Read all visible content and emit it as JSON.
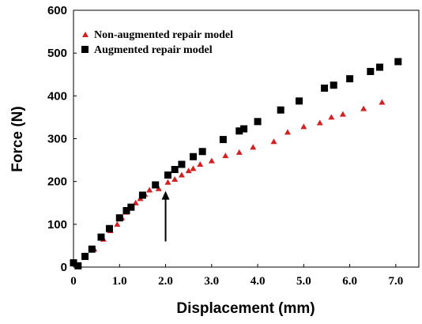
{
  "chart_data": {
    "type": "scatter",
    "xlabel": "Displacement (mm)",
    "ylabel": "Force (N)",
    "xlim": [
      0,
      7.5
    ],
    "ylim": [
      0,
      600
    ],
    "x_ticks": [
      "0",
      "1.0",
      "2.0",
      "3.0",
      "4.0",
      "5.0",
      "6.0",
      "7.0"
    ],
    "y_ticks": [
      "0",
      "100",
      "200",
      "300",
      "400",
      "500",
      "600"
    ],
    "legend_position": "top-left",
    "series": [
      {
        "name": "Non-augmented repair model",
        "marker": "triangle",
        "color": "#d42020",
        "points": [
          [
            0.0,
            12
          ],
          [
            0.05,
            8
          ],
          [
            0.25,
            27
          ],
          [
            0.45,
            42
          ],
          [
            0.65,
            65
          ],
          [
            0.8,
            85
          ],
          [
            0.95,
            100
          ],
          [
            1.05,
            115
          ],
          [
            1.15,
            128
          ],
          [
            1.25,
            140
          ],
          [
            1.35,
            150
          ],
          [
            1.45,
            160
          ],
          [
            1.55,
            170
          ],
          [
            1.65,
            180
          ],
          [
            1.85,
            183
          ],
          [
            2.05,
            198
          ],
          [
            2.2,
            205
          ],
          [
            2.35,
            215
          ],
          [
            2.5,
            225
          ],
          [
            2.6,
            230
          ],
          [
            2.75,
            240
          ],
          [
            3.0,
            248
          ],
          [
            3.3,
            260
          ],
          [
            3.6,
            268
          ],
          [
            3.9,
            280
          ],
          [
            4.35,
            293
          ],
          [
            4.65,
            315
          ],
          [
            5.0,
            328
          ],
          [
            5.35,
            337
          ],
          [
            5.6,
            350
          ],
          [
            5.85,
            357
          ],
          [
            6.3,
            370
          ],
          [
            6.7,
            385
          ]
        ]
      },
      {
        "name": "Augmented repair model",
        "marker": "square",
        "color": "#000000",
        "points": [
          [
            0.0,
            10
          ],
          [
            0.1,
            3
          ],
          [
            0.25,
            25
          ],
          [
            0.4,
            42
          ],
          [
            0.6,
            70
          ],
          [
            0.78,
            90
          ],
          [
            1.0,
            115
          ],
          [
            1.15,
            132
          ],
          [
            1.25,
            140
          ],
          [
            1.5,
            168
          ],
          [
            1.78,
            192
          ],
          [
            2.05,
            215
          ],
          [
            2.2,
            228
          ],
          [
            2.35,
            240
          ],
          [
            2.6,
            258
          ],
          [
            2.8,
            270
          ],
          [
            3.25,
            298
          ],
          [
            3.6,
            318
          ],
          [
            3.7,
            323
          ],
          [
            4.0,
            340
          ],
          [
            4.5,
            367
          ],
          [
            4.9,
            388
          ],
          [
            5.45,
            418
          ],
          [
            5.65,
            425
          ],
          [
            6.0,
            440
          ],
          [
            6.45,
            457
          ],
          [
            6.65,
            467
          ],
          [
            7.05,
            480
          ]
        ]
      }
    ],
    "annotations": [
      {
        "type": "arrow",
        "x": 2.0,
        "y_from": 60,
        "y_to": 178,
        "color": "#000000"
      }
    ]
  }
}
